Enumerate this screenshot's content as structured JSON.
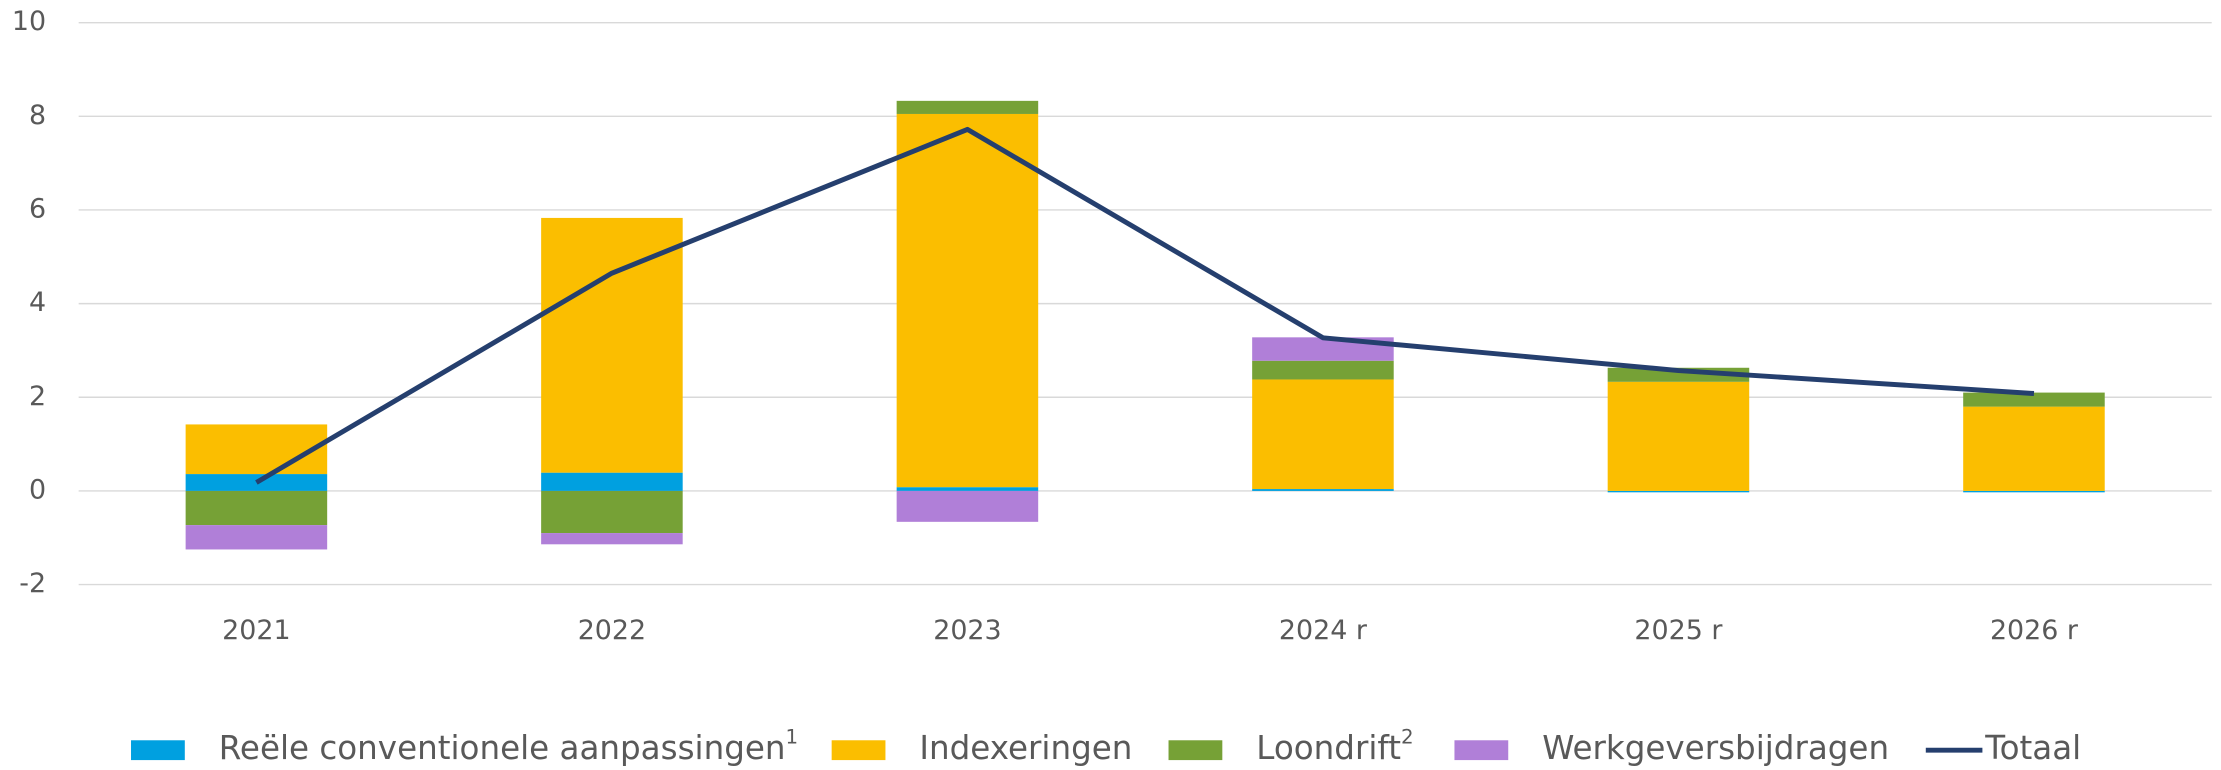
{
  "chart_data": {
    "type": "bar",
    "stacked": true,
    "categories": [
      "2021",
      "2022",
      "2023",
      "2024 r",
      "2025 r",
      "2026 r"
    ],
    "series": [
      {
        "name": "Reële conventionele aanpassingen",
        "footnote": "1",
        "color": "#00a0e0",
        "values": [
          0.36,
          0.39,
          0.08,
          0.04,
          -0.03,
          -0.03
        ]
      },
      {
        "name": "Indexeringen",
        "color": "#fbbe00",
        "values": [
          1.06,
          5.44,
          7.97,
          2.34,
          2.33,
          1.8
        ]
      },
      {
        "name": "Loondrift",
        "footnote": "2",
        "color": "#76a136",
        "values": [
          -0.73,
          -0.9,
          0.28,
          0.4,
          0.3,
          0.3
        ]
      },
      {
        "name": "Werkgeversbijdragen",
        "color": "#b07fd8",
        "values": [
          -0.52,
          -0.24,
          -0.66,
          0.5,
          0,
          0
        ]
      },
      {
        "name": "Totaal",
        "type": "line",
        "color": "#253f6e",
        "values": [
          0.18,
          4.65,
          7.72,
          3.27,
          2.57,
          2.08
        ]
      }
    ],
    "ylim": [
      -2,
      10
    ],
    "yticks": [
      -2,
      0,
      2,
      4,
      6,
      8,
      10
    ],
    "grid": true,
    "legend": "bottom"
  }
}
